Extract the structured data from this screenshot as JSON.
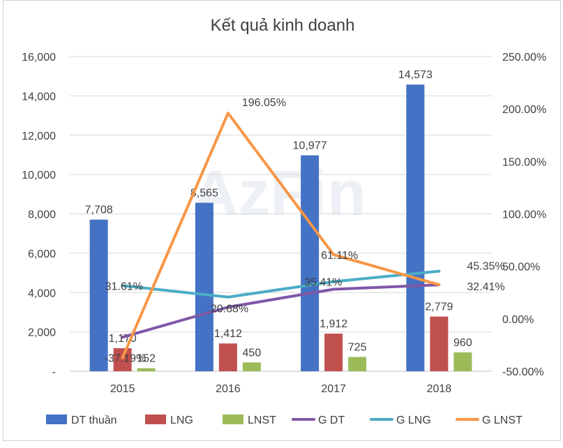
{
  "chart_data": {
    "type": "bar",
    "title": "Kết quả kinh doanh",
    "categories": [
      "2015",
      "2016",
      "2017",
      "2018"
    ],
    "y_left": {
      "range": [
        0,
        16000
      ],
      "ticks": [
        "-",
        "2,000",
        "4,000",
        "6,000",
        "8,000",
        "10,000",
        "12,000",
        "14,000",
        "16,000"
      ]
    },
    "y_right": {
      "range": [
        -50,
        250
      ],
      "unit": "%",
      "ticks": [
        "-50.00%",
        "0.00%",
        "50.00%",
        "100.00%",
        "150.00%",
        "200.00%",
        "250.00%"
      ]
    },
    "bar_series": [
      {
        "name": "DT thuần",
        "color": "#4472C4",
        "values": [
          7708,
          8565,
          10977,
          14573
        ],
        "labels": [
          "7,708",
          "8,565",
          "10,977",
          "14,573"
        ]
      },
      {
        "name": "LNG",
        "color": "#C0504D",
        "values": [
          1170,
          1412,
          1912,
          2779
        ],
        "labels": [
          "1,170",
          "1,412",
          "1,912",
          "2,779"
        ]
      },
      {
        "name": "LNST",
        "color": "#9BBB59",
        "values": [
          152,
          450,
          725,
          960
        ],
        "labels": [
          "152",
          "450",
          "725",
          "960"
        ]
      }
    ],
    "line_series": [
      {
        "name": "G DT",
        "color": "#7F57A8",
        "values": [
          -17.5,
          11.11,
          28.16,
          32.41
        ],
        "labels": [
          "",
          "",
          "",
          "32.41%"
        ]
      },
      {
        "name": "G LNG",
        "color": "#4BACC6",
        "values": [
          31.61,
          20.68,
          35.41,
          45.35
        ],
        "labels": [
          "31.61%",
          "20.68%",
          "35.41%",
          "45.35%"
        ]
      },
      {
        "name": "G LNST",
        "color": "#F79646",
        "values": [
          -37.19,
          196.05,
          61.11,
          32.41
        ],
        "labels": [
          "-37.19%",
          "196.05%",
          "61.11%",
          ""
        ]
      }
    ],
    "legend_position": "bottom",
    "gridlines": true
  },
  "watermark": "AzFin"
}
